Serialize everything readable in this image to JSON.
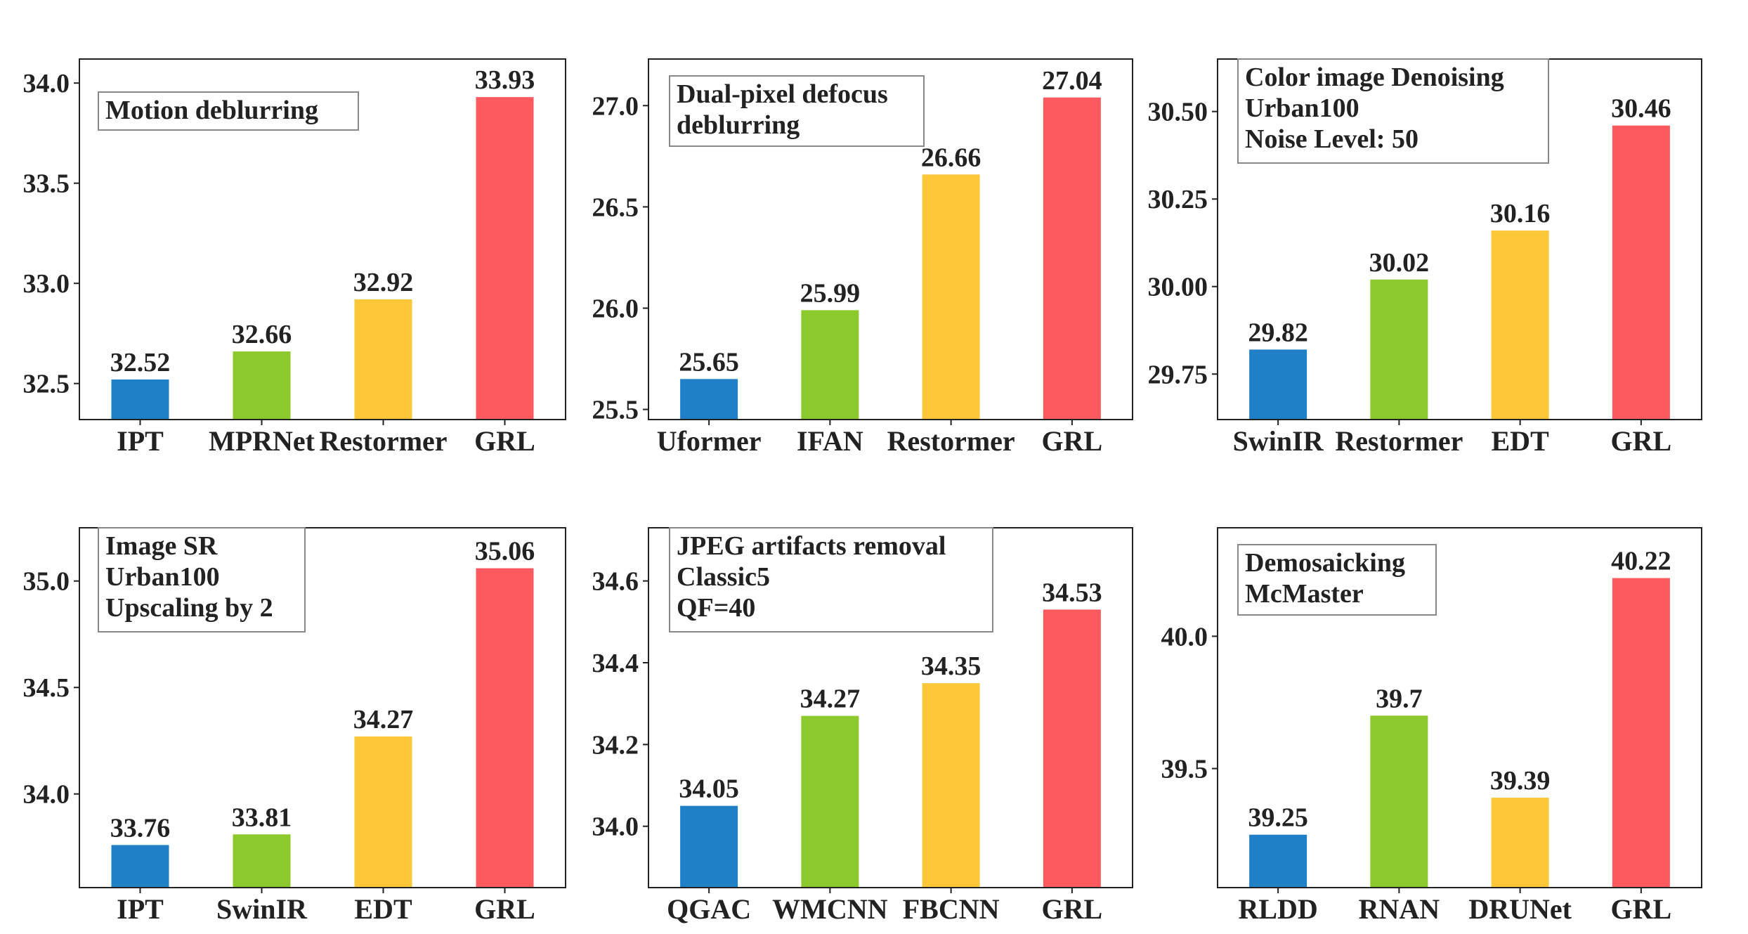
{
  "colors": [
    "#1f7fc7",
    "#8cc92c",
    "#fcc83a",
    "#fd5a5f"
  ],
  "chart_data": [
    {
      "type": "bar",
      "annotation": [
        "Motion deblurring"
      ],
      "categories": [
        "IPT",
        "MPRNet",
        "Restormer",
        "GRL"
      ],
      "values": [
        32.52,
        32.66,
        32.92,
        33.93
      ],
      "value_labels": [
        "32.52",
        "32.66",
        "32.92",
        "33.93"
      ],
      "ylim": [
        32.32,
        34.12
      ],
      "yticks": [
        "32.5",
        "33.0",
        "33.5",
        "34.0"
      ],
      "ytick_values": [
        32.5,
        33.0,
        33.5,
        34.0
      ],
      "grid": false,
      "xlabel": "",
      "ylabel": ""
    },
    {
      "type": "bar",
      "annotation": [
        "Dual-pixel defocus",
        "deblurring"
      ],
      "categories": [
        "Uformer",
        "IFAN",
        "Restormer",
        "GRL"
      ],
      "values": [
        25.65,
        25.99,
        26.66,
        27.04
      ],
      "value_labels": [
        "25.65",
        "25.99",
        "26.66",
        "27.04"
      ],
      "ylim": [
        25.45,
        27.23
      ],
      "yticks": [
        "25.5",
        "26.0",
        "26.5",
        "27.0"
      ],
      "ytick_values": [
        25.5,
        26.0,
        26.5,
        27.0
      ],
      "grid": false,
      "xlabel": "",
      "ylabel": ""
    },
    {
      "type": "bar",
      "annotation": [
        "Color image Denoising",
        "Urban100",
        "Noise Level: 50"
      ],
      "categories": [
        "SwinIR",
        "Restormer",
        "EDT",
        "GRL"
      ],
      "values": [
        29.82,
        30.02,
        30.16,
        30.46
      ],
      "value_labels": [
        "29.82",
        "30.02",
        "30.16",
        "30.46"
      ],
      "ylim": [
        29.62,
        30.65
      ],
      "yticks": [
        "29.75",
        "30.00",
        "30.25",
        "30.50"
      ],
      "ytick_values": [
        29.75,
        30.0,
        30.25,
        30.5
      ],
      "grid": false,
      "xlabel": "",
      "ylabel": ""
    },
    {
      "type": "bar",
      "annotation": [
        "Image SR",
        "Urban100",
        "Upscaling by 2"
      ],
      "categories": [
        "IPT",
        "SwinIR",
        "EDT",
        "GRL"
      ],
      "values": [
        33.76,
        33.81,
        34.27,
        35.06
      ],
      "value_labels": [
        "33.76",
        "33.81",
        "34.27",
        "35.06"
      ],
      "ylim": [
        33.56,
        35.25
      ],
      "yticks": [
        "34.0",
        "34.5",
        "35.0"
      ],
      "ytick_values": [
        34.0,
        34.5,
        35.0
      ],
      "grid": false,
      "xlabel": "",
      "ylabel": ""
    },
    {
      "type": "bar",
      "annotation": [
        "JPEG artifacts removal",
        "Classic5",
        "QF=40"
      ],
      "categories": [
        "QGAC",
        "WMCNN",
        "FBCNN",
        "GRL"
      ],
      "values": [
        34.05,
        34.27,
        34.35,
        34.53
      ],
      "value_labels": [
        "34.05",
        "34.27",
        "34.35",
        "34.53"
      ],
      "ylim": [
        33.85,
        34.73
      ],
      "yticks": [
        "34.0",
        "34.2",
        "34.4",
        "34.6"
      ],
      "ytick_values": [
        34.0,
        34.2,
        34.4,
        34.6
      ],
      "grid": false,
      "xlabel": "",
      "ylabel": ""
    },
    {
      "type": "bar",
      "annotation": [
        "Demosaicking",
        "McMaster"
      ],
      "categories": [
        "RLDD",
        "RNAN",
        "DRUNet",
        "GRL"
      ],
      "values": [
        39.25,
        39.7,
        39.39,
        40.22
      ],
      "value_labels": [
        "39.25",
        "39.7",
        "39.39",
        "40.22"
      ],
      "ylim": [
        39.05,
        40.41
      ],
      "yticks": [
        "39.5",
        "40.0"
      ],
      "ytick_values": [
        39.5,
        40.0
      ],
      "grid": false,
      "xlabel": "",
      "ylabel": ""
    }
  ]
}
